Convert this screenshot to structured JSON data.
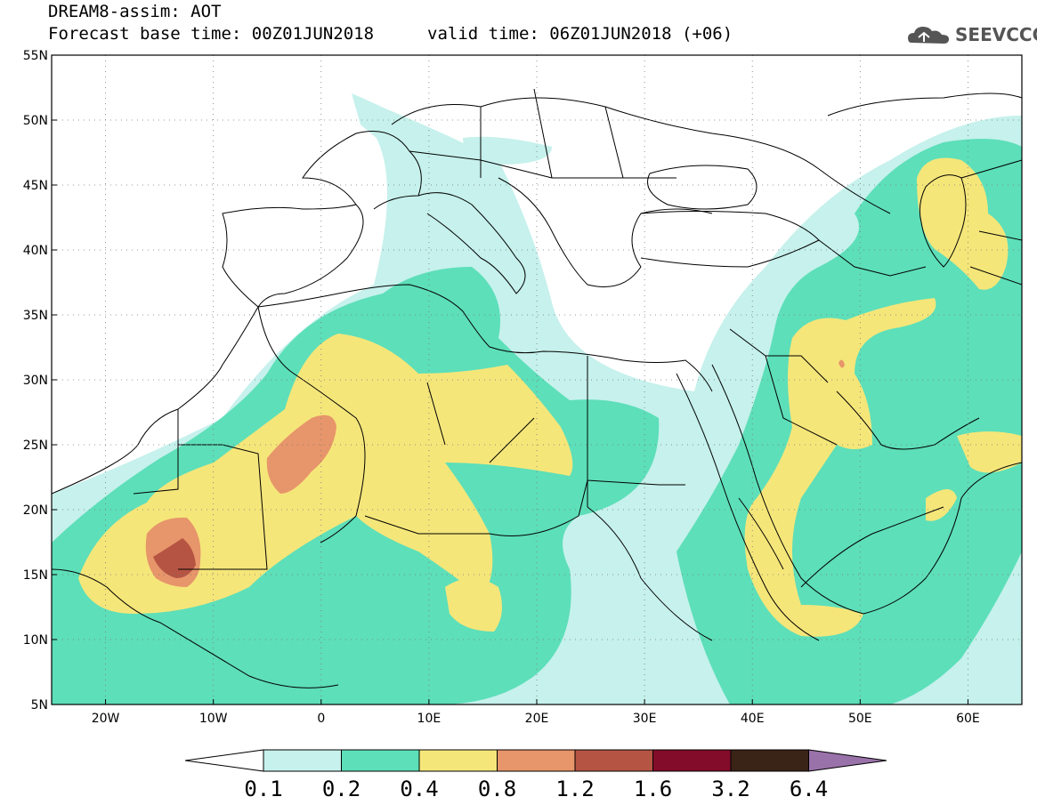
{
  "title": {
    "line1": "DREAM8-assim: AOT",
    "line2_base": "Forecast base time: 00Z01JUN2018",
    "line2_valid": "valid time: 06Z01JUN2018 (+06)"
  },
  "logo": {
    "text": "SEEVCCC",
    "icon": "cloud-logo-icon"
  },
  "map": {
    "lon_range": [
      -25,
      65
    ],
    "lat_range": [
      5,
      55
    ],
    "lon_ticks": [
      {
        "value": -20,
        "label": "20W"
      },
      {
        "value": -10,
        "label": "10W"
      },
      {
        "value": 0,
        "label": "0"
      },
      {
        "value": 10,
        "label": "10E"
      },
      {
        "value": 20,
        "label": "20E"
      },
      {
        "value": 30,
        "label": "30E"
      },
      {
        "value": 40,
        "label": "40E"
      },
      {
        "value": 50,
        "label": "50E"
      },
      {
        "value": 60,
        "label": "60E"
      }
    ],
    "lat_ticks": [
      {
        "value": 55,
        "label": "55N"
      },
      {
        "value": 50,
        "label": "50N"
      },
      {
        "value": 45,
        "label": "45N"
      },
      {
        "value": 40,
        "label": "40N"
      },
      {
        "value": 35,
        "label": "35N"
      },
      {
        "value": 30,
        "label": "30N"
      },
      {
        "value": 25,
        "label": "25N"
      },
      {
        "value": 20,
        "label": "20N"
      },
      {
        "value": 15,
        "label": "15N"
      },
      {
        "value": 10,
        "label": "10N"
      },
      {
        "value": 5,
        "label": "5N"
      }
    ],
    "gridlines": true
  },
  "colorbar": {
    "colors": [
      "#ffffff",
      "#c6f1ec",
      "#5ddfb9",
      "#f5e67a",
      "#e7956a",
      "#b65444",
      "#830c2b",
      "#3a2417",
      "#9a72aa"
    ],
    "labels": [
      "0.1",
      "0.2",
      "0.4",
      "0.8",
      "1.2",
      "1.6",
      "3.2",
      "6.4"
    ]
  }
}
